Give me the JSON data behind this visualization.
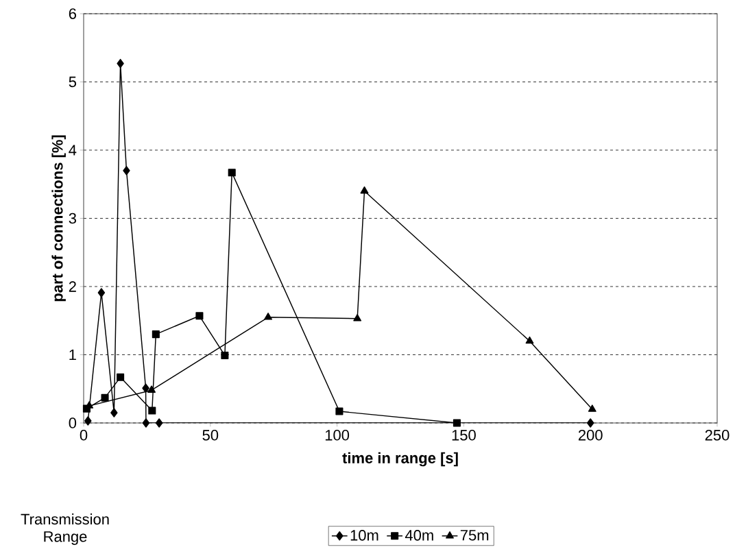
{
  "chart_data": {
    "type": "line",
    "xlabel": "time in range [s]",
    "ylabel": "part of connections [%]",
    "legend_title": "Transmission Range",
    "xlim": [
      0,
      250
    ],
    "xticks": [
      0,
      50,
      100,
      150,
      200,
      250
    ],
    "ylim": [
      0,
      6
    ],
    "yticks": [
      0,
      1,
      2,
      3,
      4,
      5,
      6
    ],
    "grid": "y",
    "legend": "bottom",
    "line_style": "solid",
    "series": [
      {
        "name": "10m",
        "color": "#000000",
        "marker": "diamond",
        "x": [
          1.7,
          7.0,
          12.0,
          14.5,
          16.9,
          24.5,
          24.6,
          29.8,
          200
        ],
        "values": [
          0.03,
          1.91,
          0.15,
          5.27,
          3.7,
          0.51,
          0,
          0,
          0
        ]
      },
      {
        "name": "40m",
        "color": "#000000",
        "marker": "square",
        "x": [
          1.2,
          8.4,
          14.5,
          27.0,
          28.5,
          45.7,
          55.7,
          58.5,
          100.9,
          147.3
        ],
        "values": [
          0.21,
          0.37,
          0.67,
          0.18,
          1.3,
          1.57,
          0.99,
          3.67,
          0.17,
          0
        ]
      },
      {
        "name": "75m",
        "color": "#000000",
        "marker": "triangle",
        "x": [
          2.2,
          26.8,
          72.8,
          108.0,
          110.8,
          176.0,
          200.7
        ],
        "values": [
          0.25,
          0.48,
          1.55,
          1.53,
          3.4,
          1.2,
          0.2
        ]
      }
    ]
  }
}
